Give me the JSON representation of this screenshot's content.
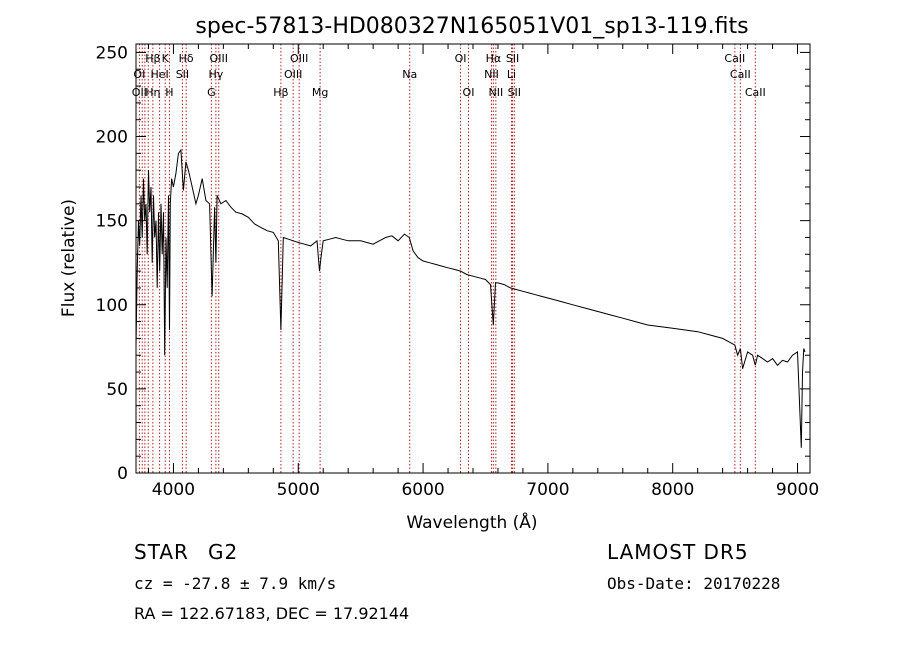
{
  "chart_data": {
    "type": "line",
    "title": "spec-57813-HD080327N165051V01_sp13-119.fits",
    "xlabel": "Wavelength (Å)",
    "ylabel": "Flux (relative)",
    "xlim": [
      3700,
      9100
    ],
    "ylim": [
      0,
      255
    ],
    "xticks": [
      4000,
      5000,
      6000,
      7000,
      8000,
      9000
    ],
    "yticks": [
      0,
      50,
      100,
      150,
      200,
      250
    ],
    "grid": false,
    "series": [
      {
        "x": [
          3700,
          3710,
          3720,
          3730,
          3740,
          3750,
          3760,
          3770,
          3780,
          3790,
          3800,
          3810,
          3820,
          3830,
          3840,
          3850,
          3860,
          3870,
          3880,
          3890,
          3900,
          3910,
          3920,
          3930,
          3940,
          3950,
          3960,
          3968,
          3975,
          3985,
          4000,
          4020,
          4040,
          4060,
          4080,
          4100,
          4120,
          4150,
          4180,
          4200,
          4230,
          4260,
          4290,
          4310,
          4330,
          4340,
          4350,
          4380,
          4420,
          4460,
          4500,
          4550,
          4600,
          4650,
          4700,
          4750,
          4800,
          4840,
          4861,
          4880,
          4920,
          4960,
          5000,
          5050,
          5100,
          5150,
          5170,
          5185,
          5200,
          5250,
          5300,
          5350,
          5400,
          5450,
          5500,
          5550,
          5600,
          5650,
          5700,
          5750,
          5800,
          5850,
          5890,
          5920,
          5960,
          6000,
          6050,
          6100,
          6150,
          6200,
          6250,
          6300,
          6350,
          6400,
          6450,
          6500,
          6540,
          6563,
          6580,
          6600,
          6650,
          6700,
          6750,
          6800,
          6850,
          6900,
          6950,
          7000,
          7100,
          7200,
          7300,
          7400,
          7500,
          7600,
          7700,
          7800,
          7900,
          8000,
          8100,
          8200,
          8300,
          8400,
          8450,
          8498,
          8520,
          8542,
          8560,
          8600,
          8640,
          8662,
          8680,
          8720,
          8760,
          8800,
          8840,
          8880,
          8920,
          8960,
          9000,
          9030,
          9040,
          9050,
          9060
        ],
        "values": [
          75,
          120,
          150,
          135,
          165,
          140,
          175,
          150,
          160,
          130,
          180,
          155,
          170,
          125,
          165,
          140,
          150,
          110,
          155,
          120,
          160,
          130,
          155,
          70,
          140,
          110,
          165,
          85,
          160,
          175,
          170,
          178,
          190,
          192,
          168,
          185,
          180,
          170,
          160,
          165,
          175,
          162,
          160,
          105,
          158,
          125,
          165,
          160,
          162,
          158,
          155,
          154,
          152,
          148,
          146,
          144,
          143,
          138,
          85,
          140,
          139,
          138,
          137,
          136,
          135,
          138,
          120,
          130,
          138,
          139,
          140,
          139,
          138,
          138,
          138,
          137,
          136,
          138,
          140,
          141,
          138,
          142,
          140,
          132,
          128,
          126,
          125,
          124,
          123,
          122,
          121,
          120,
          118,
          117,
          116,
          115,
          112,
          88,
          113,
          113,
          112,
          110,
          109,
          108,
          107,
          106,
          105,
          104,
          102,
          100,
          98,
          96,
          94,
          92,
          90,
          88,
          87,
          86,
          85,
          84,
          82,
          80,
          78,
          76,
          70,
          74,
          62,
          72,
          70,
          64,
          70,
          68,
          66,
          68,
          64,
          67,
          66,
          70,
          72,
          15,
          60,
          74,
          72
        ]
      }
    ],
    "annotations": [
      {
        "label": "Hβ",
        "x": 3835,
        "row": 1
      },
      {
        "label": "K",
        "x": 3934,
        "row": 1
      },
      {
        "label": "Hδ",
        "x": 4102,
        "row": 1
      },
      {
        "label": "OIII",
        "x": 4363,
        "row": 1
      },
      {
        "label": "OIII",
        "x": 5007,
        "row": 1
      },
      {
        "label": "OI",
        "x": 6300,
        "row": 1
      },
      {
        "label": "Hα",
        "x": 6563,
        "row": 1
      },
      {
        "label": "SII",
        "x": 6717,
        "row": 1
      },
      {
        "label": "CaII",
        "x": 8498,
        "row": 1
      },
      {
        "label": "OI",
        "x": 3727,
        "row": 2
      },
      {
        "label": "HeI",
        "x": 3889,
        "row": 2
      },
      {
        "label": "SII",
        "x": 4072,
        "row": 2
      },
      {
        "label": "Hγ",
        "x": 4340,
        "row": 2
      },
      {
        "label": "OIII",
        "x": 4959,
        "row": 2
      },
      {
        "label": "Na",
        "x": 5893,
        "row": 2
      },
      {
        "label": "NII",
        "x": 6548,
        "row": 2
      },
      {
        "label": "Li",
        "x": 6708,
        "row": 2
      },
      {
        "label": "CaII",
        "x": 8542,
        "row": 2
      },
      {
        "label": "OII",
        "x": 3727,
        "row": 3
      },
      {
        "label": "Hη",
        "x": 3835,
        "row": 3
      },
      {
        "label": "H",
        "x": 3968,
        "row": 3
      },
      {
        "label": "G",
        "x": 4304,
        "row": 3
      },
      {
        "label": "Hβ",
        "x": 4861,
        "row": 3
      },
      {
        "label": "Mg",
        "x": 5175,
        "row": 3
      },
      {
        "label": "OI",
        "x": 6364,
        "row": 3
      },
      {
        "label": "NII",
        "x": 6583,
        "row": 3
      },
      {
        "label": "SII",
        "x": 6731,
        "row": 3
      },
      {
        "label": "CaII",
        "x": 8662,
        "row": 3
      }
    ],
    "line_marker_color": "#b22222",
    "line_marker_wavelengths": [
      3727,
      3750,
      3771,
      3798,
      3835,
      3889,
      3934,
      3968,
      4072,
      4102,
      4304,
      4340,
      4363,
      4861,
      4959,
      5007,
      5175,
      5893,
      6300,
      6364,
      6548,
      6563,
      6583,
      6708,
      6717,
      6731,
      8498,
      8542,
      8662
    ]
  },
  "info": {
    "object_class": "STAR",
    "subclass": "G2",
    "survey": "LAMOST DR5",
    "redshift": "cz = -27.8 ± 7.9 km/s",
    "obs_date": "Obs-Date: 20170228",
    "coords": "RA = 122.67183, DEC =  17.92144"
  }
}
